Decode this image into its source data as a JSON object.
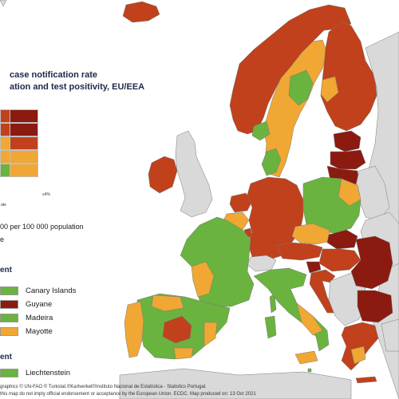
{
  "title": {
    "line1": "case notification rate",
    "line2": "ation and test positivity, EU/EEA"
  },
  "colors": {
    "dark_red": "#8b1a10",
    "red": "#c0411c",
    "orange": "#f0a733",
    "green": "#6ab33f",
    "grey": "#d9d9d9",
    "sea": "#ffffff",
    "border": "#6b6b6b"
  },
  "matrix": {
    "axis_right_label": "≥4%",
    "axis_bottom_label": "ate"
  },
  "notes": {
    "population": "00 per 100 000 population",
    "e_line": "e"
  },
  "section1": {
    "title": "ent",
    "items": [
      {
        "label": "Canary Islands",
        "color": "green"
      },
      {
        "label": "Guyane",
        "color": "dark_red"
      },
      {
        "label": "Madeira",
        "color": "green"
      },
      {
        "label": "Mayotte",
        "color": "orange"
      }
    ]
  },
  "section2": {
    "title": "ent",
    "items": [
      {
        "label": "Liechtenstein",
        "color": "green"
      }
    ]
  },
  "footer": {
    "line1": "graphics © UN-FAO © Turkstat.©Kartverket©Instituto Nacional de Estatística - Statistics Portugal.",
    "line2": "this map do not imply official endorsement or acceptance by the European Union. ECDC. Map produced on: 13 Oct 2021"
  }
}
